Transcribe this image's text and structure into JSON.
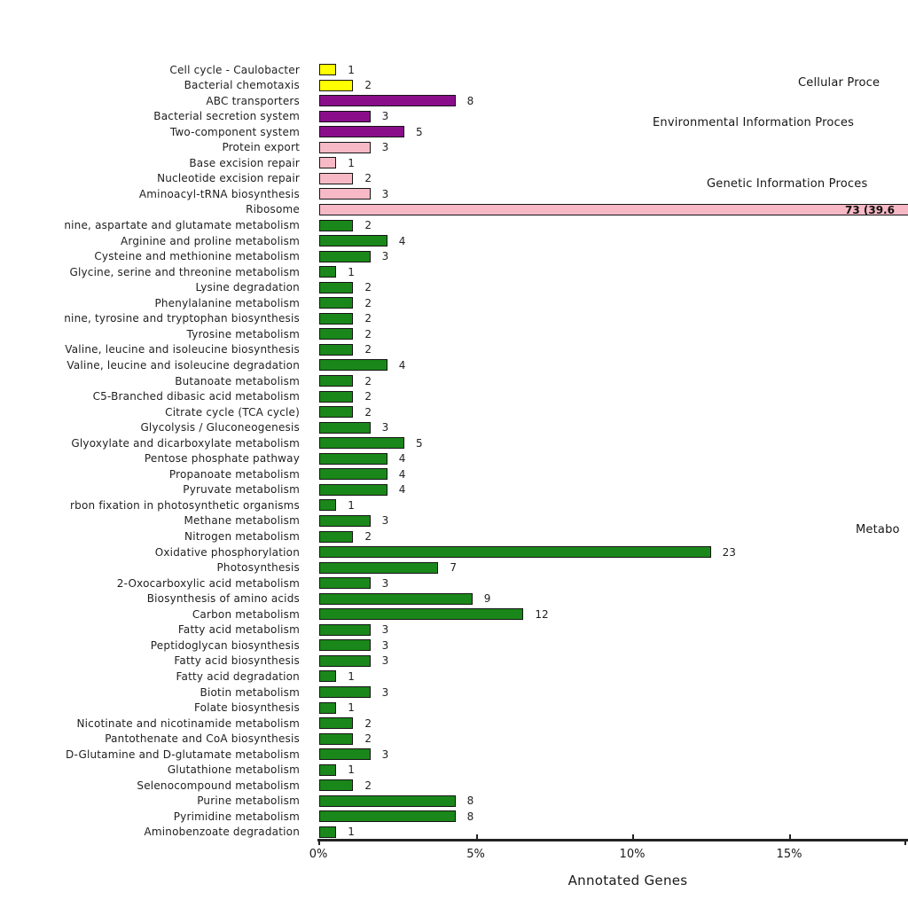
{
  "colors": {
    "cellular": "#FFFF00",
    "environmental": "#8A0D8A",
    "genetic": "#F6B9C5",
    "metabolism": "#1A871A",
    "bar_border": "#141414",
    "axis": "#222222"
  },
  "group_labels": [
    {
      "key": "cellular",
      "label": "Cellular Proce"
    },
    {
      "key": "environmental",
      "label": "Environmental Information Proces"
    },
    {
      "key": "genetic",
      "label": "Genetic Information Proces"
    },
    {
      "key": "metabolism",
      "label": "Metabo"
    }
  ],
  "x_axis": {
    "label": "Annotated Genes",
    "tick_labels": [
      "0%",
      "5%",
      "10%",
      "15%"
    ]
  },
  "chart_data": {
    "type": "bar",
    "orientation": "horizontal",
    "title": "",
    "xlabel": "Annotated Genes",
    "x_ticks_percent": [
      0,
      5,
      10,
      15
    ],
    "xlim_percent": [
      0,
      18.8
    ],
    "percent_per_gene": 0.5425,
    "legend_position": "right-inline",
    "grid": false,
    "categories": [
      "Cell cycle - Caulobacter",
      "Bacterial chemotaxis",
      "ABC transporters",
      "Bacterial secretion system",
      "Two-component system",
      "Protein export",
      "Base excision repair",
      "Nucleotide excision repair",
      "Aminoacyl-tRNA biosynthesis",
      "Ribosome",
      "nine, aspartate and glutamate metabolism",
      "Arginine and proline metabolism",
      "Cysteine and methionine metabolism",
      "Glycine, serine and threonine metabolism",
      "Lysine degradation",
      "Phenylalanine metabolism",
      "nine, tyrosine and tryptophan biosynthesis",
      "Tyrosine metabolism",
      "Valine, leucine and isoleucine biosynthesis",
      "Valine, leucine and isoleucine degradation",
      "Butanoate metabolism",
      "C5-Branched dibasic acid metabolism",
      "Citrate cycle (TCA cycle)",
      "Glycolysis / Gluconeogenesis",
      "Glyoxylate and dicarboxylate metabolism",
      "Pentose phosphate pathway",
      "Propanoate metabolism",
      "Pyruvate metabolism",
      "rbon fixation in photosynthetic organisms",
      "Methane metabolism",
      "Nitrogen metabolism",
      "Oxidative phosphorylation",
      "Photosynthesis",
      "2-Oxocarboxylic acid metabolism",
      "Biosynthesis of amino acids",
      "Carbon metabolism",
      "Fatty acid metabolism",
      "Peptidoglycan biosynthesis",
      "Fatty acid biosynthesis",
      "Fatty acid degradation",
      "Biotin metabolism",
      "Folate biosynthesis",
      "Nicotinate and nicotinamide metabolism",
      "Pantothenate and CoA biosynthesis",
      "D-Glutamine and D-glutamate metabolism",
      "Glutathione metabolism",
      "Selenocompound metabolism",
      "Purine metabolism",
      "Pyrimidine metabolism",
      "Aminobenzoate degradation"
    ],
    "values": [
      1,
      2,
      8,
      3,
      5,
      3,
      1,
      2,
      3,
      73,
      2,
      4,
      3,
      1,
      2,
      2,
      2,
      2,
      2,
      4,
      2,
      2,
      2,
      3,
      5,
      4,
      4,
      4,
      1,
      3,
      2,
      23,
      7,
      3,
      9,
      12,
      3,
      3,
      3,
      1,
      3,
      1,
      2,
      2,
      3,
      1,
      2,
      8,
      8,
      1
    ],
    "groups": [
      "cellular",
      "cellular",
      "environmental",
      "environmental",
      "environmental",
      "genetic",
      "genetic",
      "genetic",
      "genetic",
      "genetic",
      "metabolism",
      "metabolism",
      "metabolism",
      "metabolism",
      "metabolism",
      "metabolism",
      "metabolism",
      "metabolism",
      "metabolism",
      "metabolism",
      "metabolism",
      "metabolism",
      "metabolism",
      "metabolism",
      "metabolism",
      "metabolism",
      "metabolism",
      "metabolism",
      "metabolism",
      "metabolism",
      "metabolism",
      "metabolism",
      "metabolism",
      "metabolism",
      "metabolism",
      "metabolism",
      "metabolism",
      "metabolism",
      "metabolism",
      "metabolism",
      "metabolism",
      "metabolism",
      "metabolism",
      "metabolism",
      "metabolism",
      "metabolism",
      "metabolism",
      "metabolism",
      "metabolism",
      "metabolism"
    ],
    "special_value_label": {
      "index": 9,
      "text": "73 (39.6",
      "inside": true
    }
  }
}
